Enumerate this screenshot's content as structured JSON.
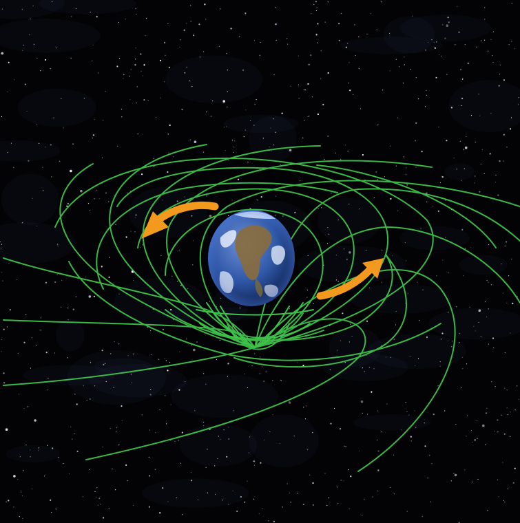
{
  "scene": {
    "subject": "earth-frame-dragging",
    "background": "starfield",
    "colors": {
      "space": "#030305",
      "field_lines": "#3ec24a",
      "arrows": "#f39a1e",
      "ocean": "#2f58a8",
      "land": "#8a6b3c",
      "clouds": "#eef3ff"
    },
    "elements": [
      "stars",
      "spacetime-field-lines",
      "earth",
      "rotation-arrow-left",
      "rotation-arrow-right"
    ]
  }
}
